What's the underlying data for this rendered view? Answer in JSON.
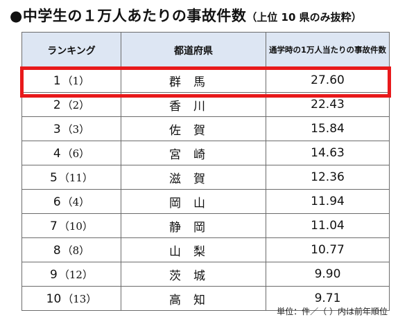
{
  "title": {
    "main": "●中学生の１万人あたりの事故件数",
    "sub": "（上位 10 県のみ抜粋）"
  },
  "table": {
    "headers": [
      "ランキング",
      "都道府県",
      "通学時の1万人当たりの事故件数"
    ],
    "rows": [
      {
        "rank": "1",
        "prev": "（1）",
        "pref": "群馬",
        "value": "27.60"
      },
      {
        "rank": "2",
        "prev": "（2）",
        "pref": "香川",
        "value": "22.43"
      },
      {
        "rank": "3",
        "prev": "（3）",
        "pref": "佐賀",
        "value": "15.84"
      },
      {
        "rank": "4",
        "prev": "（6）",
        "pref": "宮崎",
        "value": "14.63"
      },
      {
        "rank": "5",
        "prev": "（11）",
        "pref": "滋賀",
        "value": "12.36"
      },
      {
        "rank": "6",
        "prev": "（4）",
        "pref": "岡山",
        "value": "11.94"
      },
      {
        "rank": "7",
        "prev": "（10）",
        "pref": "静岡",
        "value": "11.04"
      },
      {
        "rank": "8",
        "prev": "（8）",
        "pref": "山梨",
        "value": "10.77"
      },
      {
        "rank": "9",
        "prev": "（12）",
        "pref": "茨城",
        "value": "9.90"
      },
      {
        "rank": "10",
        "prev": "（13）",
        "pref": "高知",
        "value": "9.71"
      }
    ]
  },
  "note": "単位：件／（ ）内は前年順位",
  "colors": {
    "header_bg": "#dde6f3",
    "highlight": "#e8191b",
    "border": "#6b6b6b"
  }
}
